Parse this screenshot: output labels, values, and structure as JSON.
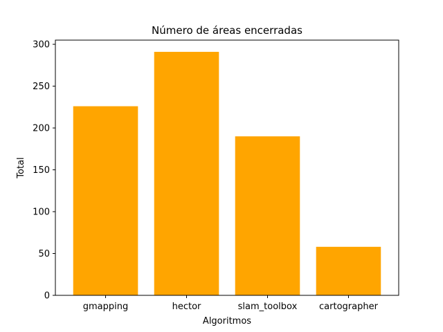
{
  "chart_data": {
    "type": "bar",
    "title": "Número de áreas encerradas",
    "xlabel": "Algoritmos",
    "ylabel": "Total",
    "categories": [
      "gmapping",
      "hector",
      "slam_toolbox",
      "cartographer"
    ],
    "values": [
      226,
      291,
      190,
      58
    ],
    "ylim": [
      0,
      305
    ],
    "yticks": [
      0,
      50,
      100,
      150,
      200,
      250,
      300
    ],
    "bar_color": "#ffa500",
    "grid": false,
    "legend": "none"
  }
}
